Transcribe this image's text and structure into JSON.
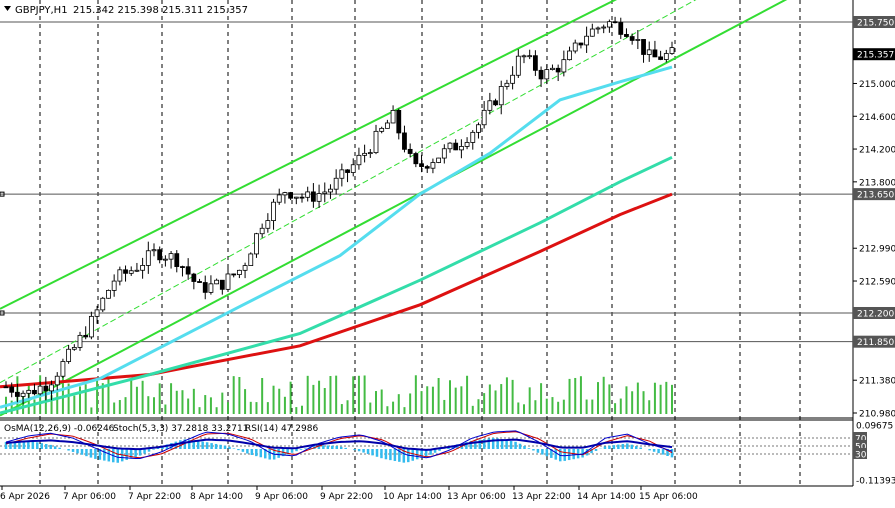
{
  "header": {
    "symbol_title": "GBPJPY,H1",
    "ohlc_text": "215.342 215.398 215.311 215.357"
  },
  "indicator_header": {
    "osma": "OsMA(12,26,9) -0.06246",
    "stoch": "Stoch(5,3,3) 37.2818 33.2711",
    "rsi": "RSI(14) 47.2986"
  },
  "colors": {
    "background": "#ffffff",
    "candles": "#000000",
    "channel": "#33dd33",
    "ema_fast": "#55ddee",
    "ema_mid": "#33ddaa",
    "ema_slow": "#dd1111",
    "volume": "#44bb44",
    "osma": "#33bbee",
    "stoch_main": "#0000cc",
    "stoch_signal": "#cc0000",
    "rsi": "#0000aa",
    "price_tag": "#000000"
  },
  "chart_data": {
    "type": "candlestick",
    "symbol": "GBPJPY",
    "timeframe": "H1",
    "last_price": 215.357,
    "ylim": [
      210.98,
      216.05
    ],
    "price_ticks": [
      "215.750",
      "215.357",
      "215.000",
      "214.600",
      "214.200",
      "213.800",
      "213.650",
      "212.990",
      "212.590",
      "212.200",
      "211.850",
      "211.380",
      "210.980"
    ],
    "highlighted_levels": [
      "215.750",
      "213.650",
      "212.200",
      "211.850"
    ],
    "time_labels": [
      "6 Apr 2026",
      "7 Apr 06:00",
      "7 Apr 22:00",
      "8 Apr 14:00",
      "9 Apr 06:00",
      "9 Apr 22:00",
      "10 Apr 14:00",
      "13 Apr 06:00",
      "13 Apr 22:00",
      "14 Apr 14:00",
      "15 Apr 06:00"
    ],
    "close_path": [
      211.3,
      211.22,
      211.35,
      211.7,
      212.1,
      212.6,
      212.75,
      212.95,
      212.85,
      212.5,
      212.55,
      212.75,
      213.35,
      213.7,
      213.6,
      213.7,
      213.95,
      214.25,
      214.6,
      213.95,
      214.1,
      214.25,
      214.5,
      214.9,
      215.35,
      215.1,
      215.25,
      215.6,
      215.75,
      215.65,
      215.3,
      215.357
    ],
    "channel": {
      "upper": [
        [
          0,
          212.25
        ],
        [
          620,
          216.05
        ]
      ],
      "middle": [
        [
          0,
          211.35
        ],
        [
          700,
          216.05
        ]
      ],
      "lower": [
        [
          0,
          210.95
        ],
        [
          790,
          216.05
        ]
      ]
    },
    "ema_fast": [
      [
        0,
        211.05
      ],
      [
        100,
        211.4
      ],
      [
        240,
        212.28
      ],
      [
        340,
        212.9
      ],
      [
        420,
        213.65
      ],
      [
        490,
        214.15
      ],
      [
        560,
        214.8
      ],
      [
        620,
        215.02
      ],
      [
        672,
        215.2
      ]
    ],
    "ema_mid": [
      [
        0,
        210.98
      ],
      [
        150,
        211.45
      ],
      [
        300,
        211.95
      ],
      [
        420,
        212.6
      ],
      [
        540,
        213.3
      ],
      [
        620,
        213.8
      ],
      [
        672,
        214.1
      ]
    ],
    "ema_slow": [
      [
        0,
        211.3
      ],
      [
        150,
        211.45
      ],
      [
        300,
        211.8
      ],
      [
        420,
        212.3
      ],
      [
        540,
        212.95
      ],
      [
        620,
        213.4
      ],
      [
        672,
        213.65
      ]
    ],
    "indicator_panel": {
      "ticks": [
        "0.09675",
        "70",
        "50",
        "30",
        "-0.11393"
      ],
      "levels": [
        70,
        50,
        30
      ],
      "osma_path": [
        0.05,
        0.06,
        0.03,
        -0.02,
        -0.07,
        -0.1,
        -0.05,
        0.02,
        0.07,
        0.05,
        0.02,
        -0.04,
        -0.08,
        -0.02,
        0.03,
        0.02,
        -0.02,
        -0.07,
        -0.1,
        -0.05,
        0.02,
        0.06,
        0.08,
        0.05,
        -0.03,
        -0.09,
        -0.06,
        0.02,
        0.04,
        -0.01,
        -0.06
      ],
      "stoch_path": [
        60,
        75,
        82,
        70,
        45,
        22,
        18,
        35,
        62,
        85,
        80,
        62,
        30,
        25,
        55,
        72,
        78,
        60,
        28,
        20,
        40,
        70,
        85,
        88,
        60,
        25,
        30,
        70,
        80,
        55,
        37.28
      ],
      "signal_path": [
        55,
        70,
        80,
        75,
        55,
        30,
        20,
        30,
        55,
        80,
        82,
        68,
        40,
        28,
        48,
        68,
        76,
        65,
        35,
        22,
        35,
        62,
        82,
        86,
        68,
        35,
        28,
        60,
        76,
        62,
        33.27
      ],
      "rsi_path": [
        58,
        62,
        64,
        60,
        52,
        44,
        42,
        48,
        58,
        66,
        64,
        56,
        46,
        44,
        54,
        60,
        62,
        56,
        44,
        40,
        48,
        58,
        64,
        66,
        58,
        46,
        46,
        58,
        62,
        54,
        47.3
      ]
    }
  }
}
